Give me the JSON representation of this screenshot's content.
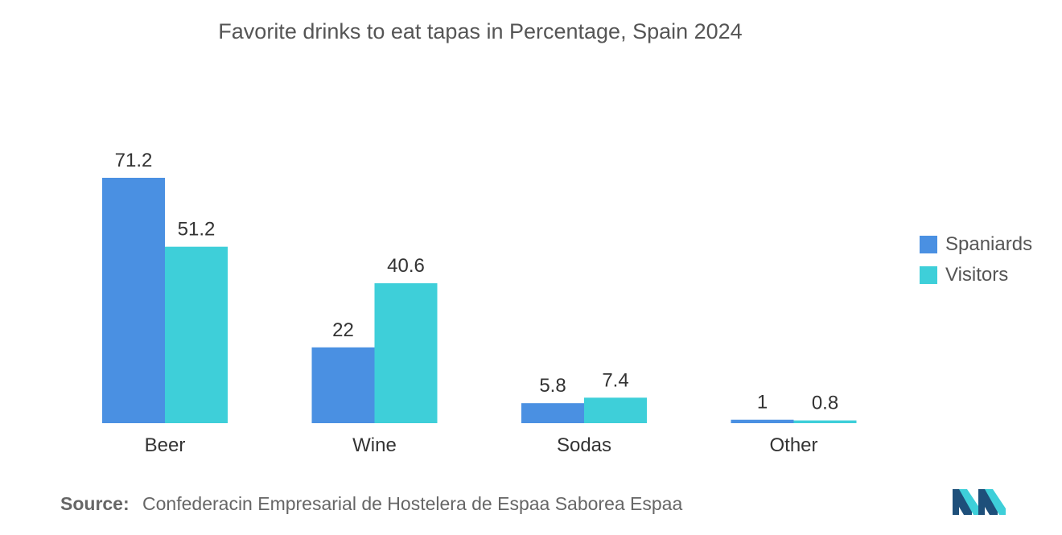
{
  "chart_data": {
    "type": "bar",
    "title": "Favorite drinks to eat tapas in Percentage, Spain 2024",
    "categories": [
      "Beer",
      "Wine",
      "Sodas",
      "Other"
    ],
    "series": [
      {
        "name": "Spaniards",
        "values": [
          71.2,
          22,
          5.8,
          1
        ],
        "labels": [
          "71.2",
          "22",
          "5.8",
          "1"
        ],
        "color": "#4a90e2"
      },
      {
        "name": "Visitors",
        "values": [
          51.2,
          40.6,
          7.4,
          0.8
        ],
        "labels": [
          "51.2",
          "40.6",
          "7.4",
          "0.8"
        ],
        "color": "#3ecfd9"
      }
    ],
    "xlabel": "",
    "ylabel": "",
    "ylim": [
      0,
      71.2
    ],
    "grid": false,
    "legend": "right"
  },
  "source": {
    "label": "Source:",
    "text": "Confederacin Empresarial de Hostelera de Espaa Saborea Espaa"
  },
  "logo": {
    "icon": "mordor-intelligence-logo",
    "colors": [
      "#1e4f7a",
      "#3ecfd9"
    ]
  }
}
